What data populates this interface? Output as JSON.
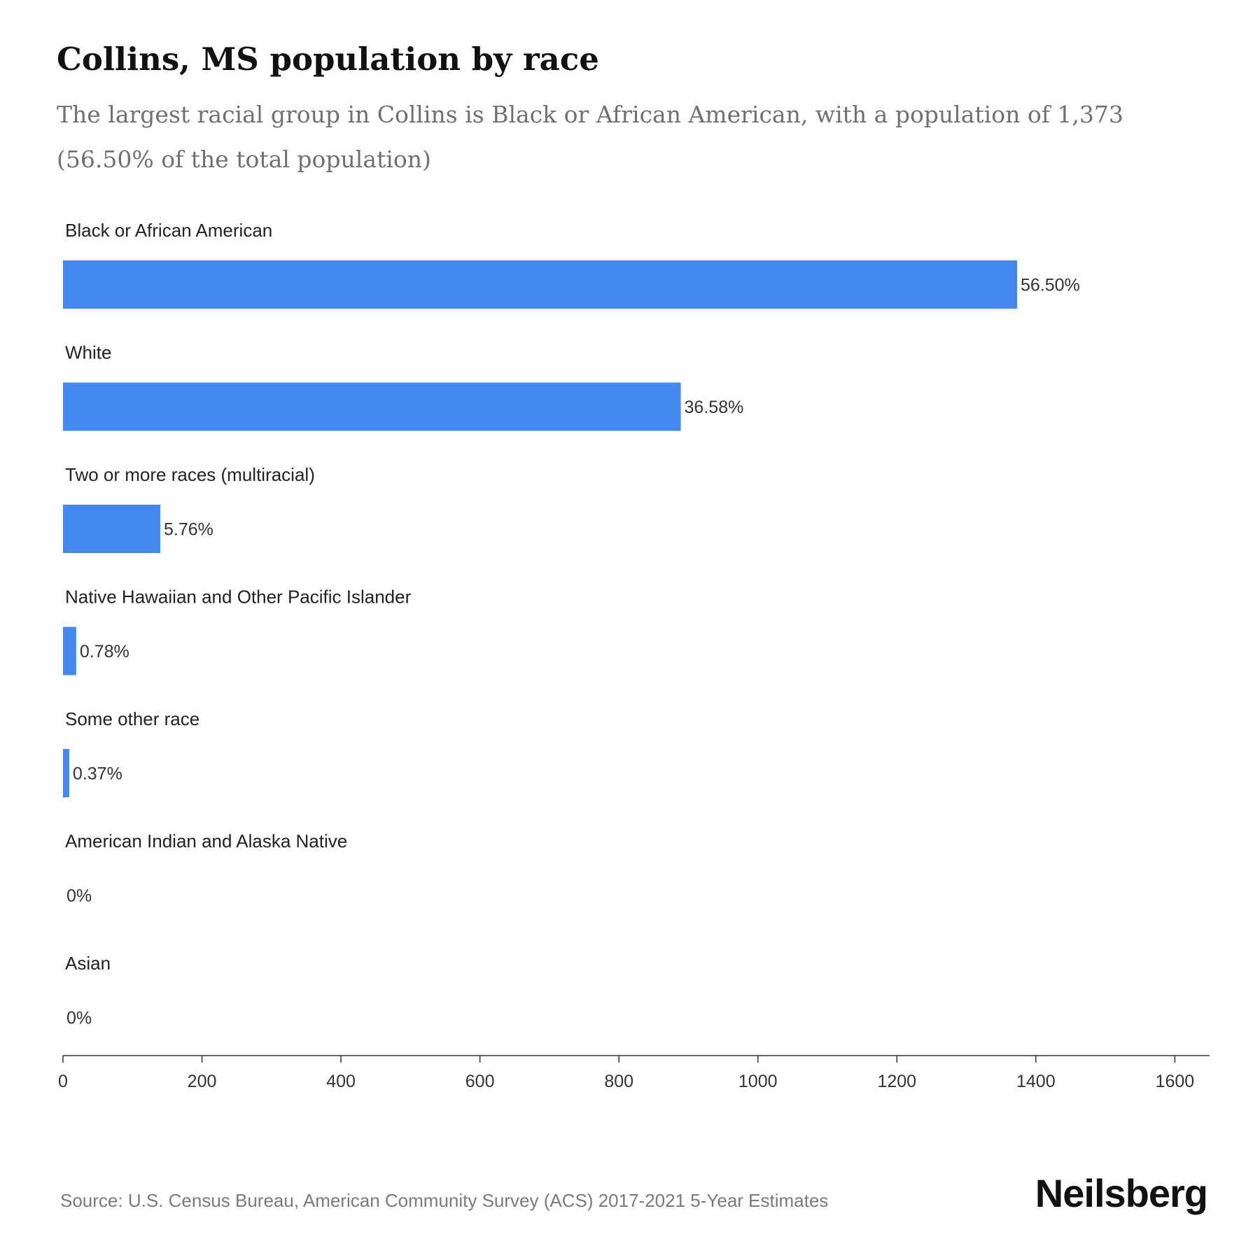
{
  "header": {
    "title": "Collins, MS population by race",
    "subtitle": "The largest racial group in Collins is Black or African American, with a population of 1,373 (56.50% of the total population)"
  },
  "chart_data": {
    "type": "bar",
    "orientation": "horizontal",
    "categories": [
      "Black or African American",
      "White",
      "Two or more races (multiracial)",
      "Native Hawaiian and Other Pacific Islander",
      "Some other race",
      "American Indian and Alaska Native",
      "Asian"
    ],
    "values": [
      1373,
      889,
      140,
      19,
      9,
      0,
      0
    ],
    "value_labels": [
      "56.50%",
      "36.58%",
      "5.76%",
      "0.78%",
      "0.37%",
      "0%",
      "0%"
    ],
    "xlim": [
      0,
      1650
    ],
    "xticks": [
      0,
      200,
      400,
      600,
      800,
      1000,
      1200,
      1400,
      1600
    ],
    "bar_color": "#4589f0",
    "grid": false,
    "legend": "none"
  },
  "footer": {
    "source": "Source: U.S. Census Bureau, American Community Survey (ACS) 2017-2021 5-Year Estimates",
    "brand": "Neilsberg"
  }
}
